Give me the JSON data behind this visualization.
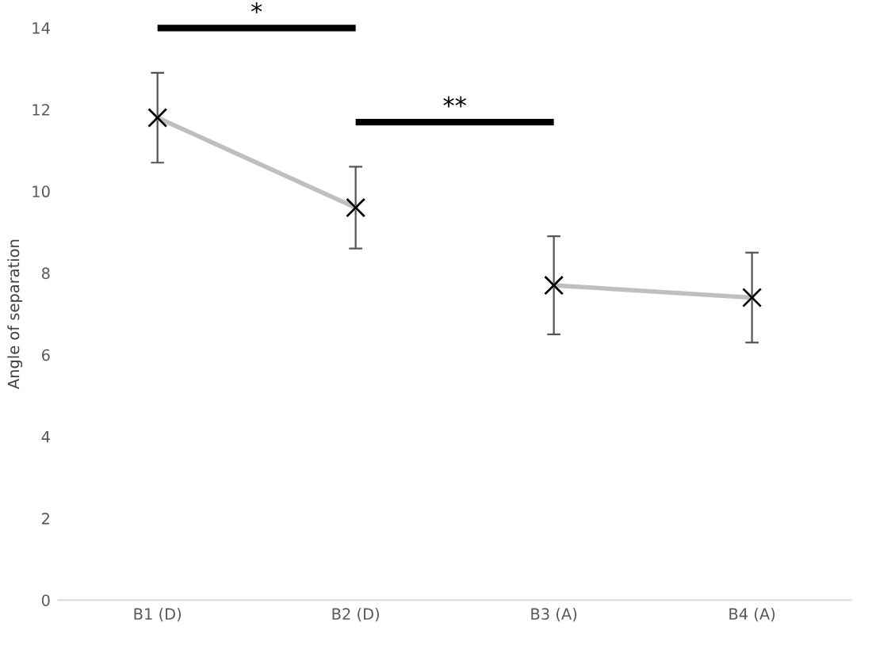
{
  "chart_data": {
    "type": "line",
    "ylabel": "Angle of separation",
    "categories": [
      "B1 (D)",
      "B2 (D)",
      "B3 (A)",
      "B4 (A)"
    ],
    "series": [
      {
        "color": "#bfbfbf",
        "values": [
          11.8,
          9.6,
          null,
          null
        ],
        "errors": [
          1.1,
          1.0,
          null,
          null
        ]
      },
      {
        "color": "#bfbfbf",
        "values": [
          null,
          null,
          7.7,
          7.4
        ],
        "errors": [
          null,
          null,
          1.2,
          1.1
        ]
      }
    ],
    "marker": "cross",
    "ylim": [
      0,
      14
    ],
    "yticks": [
      0,
      2,
      4,
      6,
      8,
      10,
      12,
      14
    ],
    "grid": false,
    "legend": false,
    "annotations": [
      "*",
      "**"
    ]
  }
}
